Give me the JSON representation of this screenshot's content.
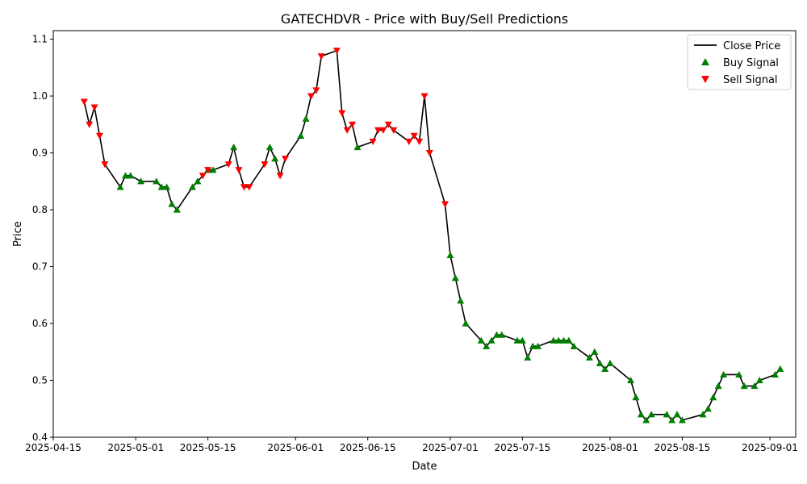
{
  "chart_data": {
    "type": "line",
    "title": "GATECHDVR - Price with Buy/Sell Predictions",
    "xlabel": "Date",
    "ylabel": "Price",
    "xlim": [
      "2025-04-15",
      "2025-09-06"
    ],
    "ylim": [
      0.4,
      1.115
    ],
    "x_ticks": [
      "2025-04-15",
      "2025-05-01",
      "2025-05-15",
      "2025-06-01",
      "2025-06-15",
      "2025-07-01",
      "2025-07-15",
      "2025-08-01",
      "2025-08-15",
      "2025-09-01"
    ],
    "y_ticks": [
      0.4,
      0.5,
      0.6,
      0.7,
      0.8,
      0.9,
      1.0,
      1.1
    ],
    "legend_position": "top-right",
    "series": [
      {
        "name": "Close Price",
        "kind": "line",
        "color": "#000000",
        "points": [
          [
            "2025-04-21",
            0.99
          ],
          [
            "2025-04-22",
            0.95
          ],
          [
            "2025-04-23",
            0.98
          ],
          [
            "2025-04-24",
            0.93
          ],
          [
            "2025-04-25",
            0.88
          ],
          [
            "2025-04-28",
            0.84
          ],
          [
            "2025-04-29",
            0.86
          ],
          [
            "2025-04-30",
            0.86
          ],
          [
            "2025-05-02",
            0.85
          ],
          [
            "2025-05-05",
            0.85
          ],
          [
            "2025-05-06",
            0.84
          ],
          [
            "2025-05-07",
            0.84
          ],
          [
            "2025-05-08",
            0.81
          ],
          [
            "2025-05-09",
            0.8
          ],
          [
            "2025-05-12",
            0.84
          ],
          [
            "2025-05-13",
            0.85
          ],
          [
            "2025-05-14",
            0.86
          ],
          [
            "2025-05-15",
            0.87
          ],
          [
            "2025-05-16",
            0.87
          ],
          [
            "2025-05-19",
            0.88
          ],
          [
            "2025-05-20",
            0.91
          ],
          [
            "2025-05-21",
            0.87
          ],
          [
            "2025-05-22",
            0.84
          ],
          [
            "2025-05-23",
            0.84
          ],
          [
            "2025-05-26",
            0.88
          ],
          [
            "2025-05-27",
            0.91
          ],
          [
            "2025-05-28",
            0.89
          ],
          [
            "2025-05-29",
            0.86
          ],
          [
            "2025-05-30",
            0.89
          ],
          [
            "2025-06-02",
            0.93
          ],
          [
            "2025-06-03",
            0.96
          ],
          [
            "2025-06-04",
            1.0
          ],
          [
            "2025-06-05",
            1.01
          ],
          [
            "2025-06-06",
            1.07
          ],
          [
            "2025-06-09",
            1.08
          ],
          [
            "2025-06-10",
            0.97
          ],
          [
            "2025-06-11",
            0.94
          ],
          [
            "2025-06-12",
            0.95
          ],
          [
            "2025-06-13",
            0.91
          ],
          [
            "2025-06-16",
            0.92
          ],
          [
            "2025-06-17",
            0.94
          ],
          [
            "2025-06-18",
            0.94
          ],
          [
            "2025-06-19",
            0.95
          ],
          [
            "2025-06-20",
            0.94
          ],
          [
            "2025-06-23",
            0.92
          ],
          [
            "2025-06-24",
            0.93
          ],
          [
            "2025-06-25",
            0.92
          ],
          [
            "2025-06-26",
            1.0
          ],
          [
            "2025-06-27",
            0.9
          ],
          [
            "2025-06-30",
            0.81
          ],
          [
            "2025-07-01",
            0.72
          ],
          [
            "2025-07-02",
            0.68
          ],
          [
            "2025-07-03",
            0.64
          ],
          [
            "2025-07-04",
            0.6
          ],
          [
            "2025-07-07",
            0.57
          ],
          [
            "2025-07-08",
            0.56
          ],
          [
            "2025-07-09",
            0.57
          ],
          [
            "2025-07-10",
            0.58
          ],
          [
            "2025-07-11",
            0.58
          ],
          [
            "2025-07-14",
            0.57
          ],
          [
            "2025-07-15",
            0.57
          ],
          [
            "2025-07-16",
            0.54
          ],
          [
            "2025-07-17",
            0.56
          ],
          [
            "2025-07-18",
            0.56
          ],
          [
            "2025-07-21",
            0.57
          ],
          [
            "2025-07-22",
            0.57
          ],
          [
            "2025-07-23",
            0.57
          ],
          [
            "2025-07-24",
            0.57
          ],
          [
            "2025-07-25",
            0.56
          ],
          [
            "2025-07-28",
            0.54
          ],
          [
            "2025-07-29",
            0.55
          ],
          [
            "2025-07-30",
            0.53
          ],
          [
            "2025-07-31",
            0.52
          ],
          [
            "2025-08-01",
            0.53
          ],
          [
            "2025-08-05",
            0.5
          ],
          [
            "2025-08-06",
            0.47
          ],
          [
            "2025-08-07",
            0.44
          ],
          [
            "2025-08-08",
            0.43
          ],
          [
            "2025-08-09",
            0.44
          ],
          [
            "2025-08-12",
            0.44
          ],
          [
            "2025-08-13",
            0.43
          ],
          [
            "2025-08-14",
            0.44
          ],
          [
            "2025-08-15",
            0.43
          ],
          [
            "2025-08-19",
            0.44
          ],
          [
            "2025-08-20",
            0.45
          ],
          [
            "2025-08-21",
            0.47
          ],
          [
            "2025-08-22",
            0.49
          ],
          [
            "2025-08-23",
            0.51
          ],
          [
            "2025-08-26",
            0.51
          ],
          [
            "2025-08-27",
            0.49
          ],
          [
            "2025-08-29",
            0.49
          ],
          [
            "2025-08-30",
            0.5
          ],
          [
            "2025-09-02",
            0.51
          ],
          [
            "2025-09-03",
            0.52
          ]
        ]
      },
      {
        "name": "Buy Signal",
        "kind": "marker",
        "marker": "triangle-up",
        "color": "#008000",
        "points": [
          [
            "2025-04-28",
            0.84
          ],
          [
            "2025-04-29",
            0.86
          ],
          [
            "2025-04-30",
            0.86
          ],
          [
            "2025-05-02",
            0.85
          ],
          [
            "2025-05-05",
            0.85
          ],
          [
            "2025-05-06",
            0.84
          ],
          [
            "2025-05-07",
            0.84
          ],
          [
            "2025-05-08",
            0.81
          ],
          [
            "2025-05-09",
            0.8
          ],
          [
            "2025-05-12",
            0.84
          ],
          [
            "2025-05-13",
            0.85
          ],
          [
            "2025-05-15",
            0.87
          ],
          [
            "2025-05-16",
            0.87
          ],
          [
            "2025-05-20",
            0.91
          ],
          [
            "2025-05-27",
            0.91
          ],
          [
            "2025-05-28",
            0.89
          ],
          [
            "2025-06-02",
            0.93
          ],
          [
            "2025-06-03",
            0.96
          ],
          [
            "2025-06-13",
            0.91
          ],
          [
            "2025-07-01",
            0.72
          ],
          [
            "2025-07-02",
            0.68
          ],
          [
            "2025-07-03",
            0.64
          ],
          [
            "2025-07-04",
            0.6
          ],
          [
            "2025-07-07",
            0.57
          ],
          [
            "2025-07-08",
            0.56
          ],
          [
            "2025-07-09",
            0.57
          ],
          [
            "2025-07-10",
            0.58
          ],
          [
            "2025-07-11",
            0.58
          ],
          [
            "2025-07-14",
            0.57
          ],
          [
            "2025-07-15",
            0.57
          ],
          [
            "2025-07-16",
            0.54
          ],
          [
            "2025-07-17",
            0.56
          ],
          [
            "2025-07-18",
            0.56
          ],
          [
            "2025-07-21",
            0.57
          ],
          [
            "2025-07-22",
            0.57
          ],
          [
            "2025-07-23",
            0.57
          ],
          [
            "2025-07-24",
            0.57
          ],
          [
            "2025-07-25",
            0.56
          ],
          [
            "2025-07-28",
            0.54
          ],
          [
            "2025-07-29",
            0.55
          ],
          [
            "2025-07-30",
            0.53
          ],
          [
            "2025-07-31",
            0.52
          ],
          [
            "2025-08-01",
            0.53
          ],
          [
            "2025-08-05",
            0.5
          ],
          [
            "2025-08-06",
            0.47
          ],
          [
            "2025-08-07",
            0.44
          ],
          [
            "2025-08-08",
            0.43
          ],
          [
            "2025-08-09",
            0.44
          ],
          [
            "2025-08-12",
            0.44
          ],
          [
            "2025-08-13",
            0.43
          ],
          [
            "2025-08-14",
            0.44
          ],
          [
            "2025-08-15",
            0.43
          ],
          [
            "2025-08-19",
            0.44
          ],
          [
            "2025-08-20",
            0.45
          ],
          [
            "2025-08-21",
            0.47
          ],
          [
            "2025-08-22",
            0.49
          ],
          [
            "2025-08-23",
            0.51
          ],
          [
            "2025-08-26",
            0.51
          ],
          [
            "2025-08-27",
            0.49
          ],
          [
            "2025-08-29",
            0.49
          ],
          [
            "2025-08-30",
            0.5
          ],
          [
            "2025-09-02",
            0.51
          ],
          [
            "2025-09-03",
            0.52
          ]
        ]
      },
      {
        "name": "Sell Signal",
        "kind": "marker",
        "marker": "triangle-down",
        "color": "#ff0000",
        "points": [
          [
            "2025-04-21",
            0.99
          ],
          [
            "2025-04-22",
            0.95
          ],
          [
            "2025-04-23",
            0.98
          ],
          [
            "2025-04-24",
            0.93
          ],
          [
            "2025-04-25",
            0.88
          ],
          [
            "2025-05-14",
            0.86
          ],
          [
            "2025-05-15",
            0.87
          ],
          [
            "2025-05-19",
            0.88
          ],
          [
            "2025-05-21",
            0.87
          ],
          [
            "2025-05-22",
            0.84
          ],
          [
            "2025-05-23",
            0.84
          ],
          [
            "2025-05-26",
            0.88
          ],
          [
            "2025-05-29",
            0.86
          ],
          [
            "2025-05-30",
            0.89
          ],
          [
            "2025-06-04",
            1.0
          ],
          [
            "2025-06-05",
            1.01
          ],
          [
            "2025-06-06",
            1.07
          ],
          [
            "2025-06-09",
            1.08
          ],
          [
            "2025-06-10",
            0.97
          ],
          [
            "2025-06-11",
            0.94
          ],
          [
            "2025-06-12",
            0.95
          ],
          [
            "2025-06-16",
            0.92
          ],
          [
            "2025-06-17",
            0.94
          ],
          [
            "2025-06-18",
            0.94
          ],
          [
            "2025-06-19",
            0.95
          ],
          [
            "2025-06-20",
            0.94
          ],
          [
            "2025-06-23",
            0.92
          ],
          [
            "2025-06-24",
            0.93
          ],
          [
            "2025-06-25",
            0.92
          ],
          [
            "2025-06-26",
            1.0
          ],
          [
            "2025-06-27",
            0.9
          ],
          [
            "2025-06-30",
            0.81
          ]
        ]
      }
    ]
  }
}
